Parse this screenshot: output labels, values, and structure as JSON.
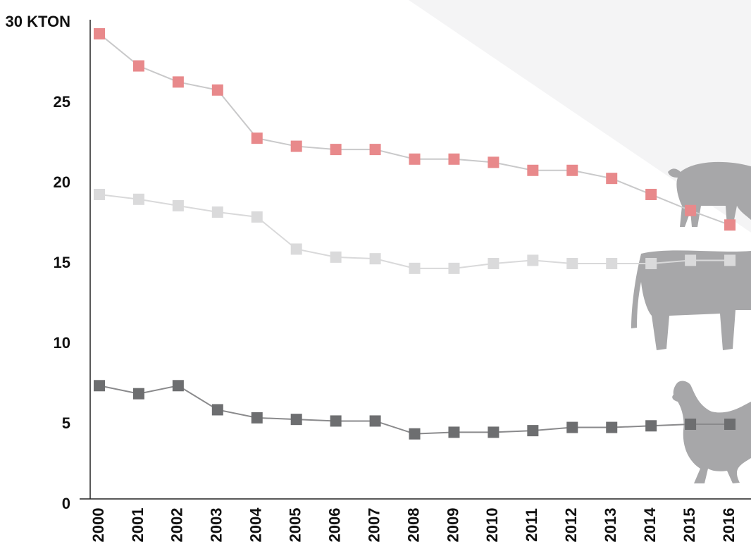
{
  "chart_data": {
    "type": "line",
    "x": [
      "2000",
      "2001",
      "2002",
      "2003",
      "2004",
      "2005",
      "2006",
      "2007",
      "2008",
      "2009",
      "2010",
      "2011",
      "2012",
      "2013",
      "2014",
      "2015",
      "2016"
    ],
    "series": [
      {
        "color": "#e8898b",
        "line_color": "#c9c9ca",
        "values": [
          29.3,
          27.3,
          26.3,
          25.8,
          22.8,
          22.3,
          22.1,
          22.1,
          21.5,
          21.5,
          21.3,
          20.8,
          20.8,
          20.3,
          19.3,
          18.3,
          17.4
        ]
      },
      {
        "color": "#dadadb",
        "line_color": "#d9d9da",
        "values": [
          19.3,
          19.0,
          18.6,
          18.2,
          17.9,
          15.9,
          15.4,
          15.3,
          14.7,
          14.7,
          15.0,
          15.2,
          15.0,
          15.0,
          15.0,
          15.2,
          15.2
        ]
      },
      {
        "color": "#6d6e70",
        "line_color": "#8a8a8c",
        "values": [
          7.4,
          6.9,
          7.4,
          5.9,
          5.4,
          5.3,
          5.2,
          5.2,
          4.4,
          4.5,
          4.5,
          4.6,
          4.8,
          4.8,
          4.9,
          5.0,
          5.0
        ]
      }
    ],
    "ylim": [
      0,
      30
    ],
    "yticks": [
      0,
      5,
      10,
      15,
      20,
      25,
      {
        "value": 30,
        "label": "30 KTON"
      }
    ]
  }
}
